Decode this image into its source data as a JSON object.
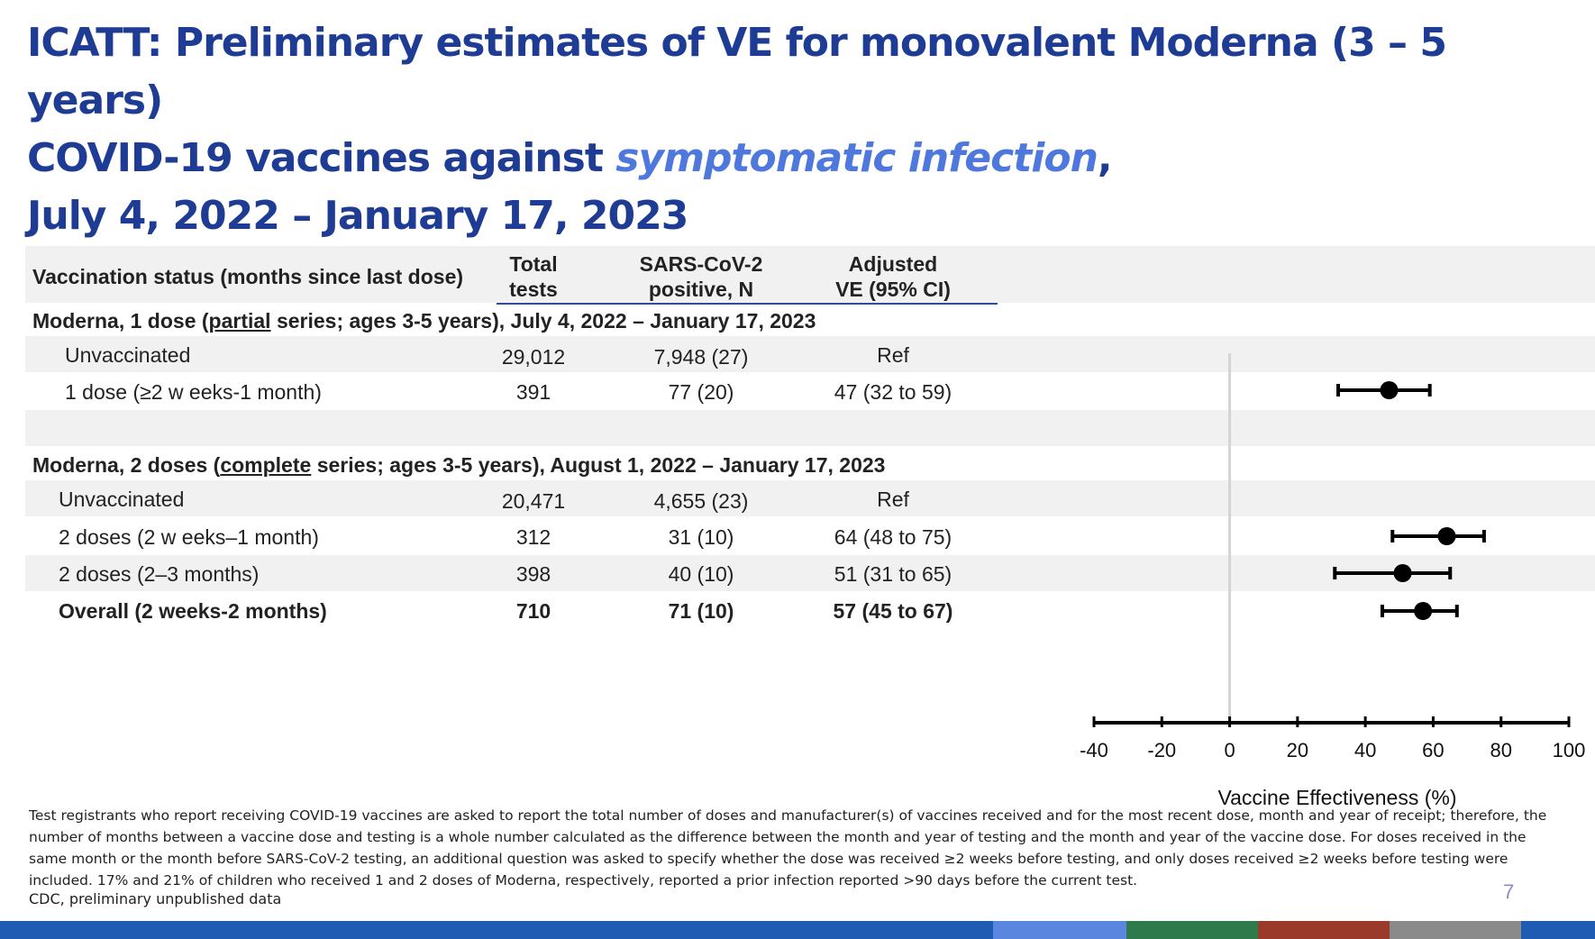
{
  "title": {
    "line1": "ICATT: Preliminary estimates of VE for monovalent Moderna (3 – 5 years)",
    "line2_prefix": "COVID-19 vaccines against ",
    "line2_emphasis": "symptomatic infection",
    "line2_suffix": ",",
    "line3": "July 4, 2022 – January  17, 2023"
  },
  "table": {
    "headers": {
      "status": "Vaccination status (months since last dose)",
      "total_line1": "Total",
      "total_line2": "tests",
      "positive_line1": "SARS-CoV-2",
      "positive_line2": "positive, N",
      "ve_line1": "Adjusted",
      "ve_line2": "VE (95% CI)"
    },
    "group1": {
      "prefix": "Moderna, 1 dose (",
      "underlined": "partial",
      "suffix": " series; ages 3-5 years), July 4, 2022 – January 17, 2023",
      "rows": [
        {
          "status": "Unvaccinated",
          "total": "29,012",
          "positive": "7,948 (27)",
          "ve": "Ref"
        },
        {
          "status": "1 dose (≥2 w eeks-1 month)",
          "total": "391",
          "positive": "77 (20)",
          "ve": "47 (32 to 59)"
        }
      ]
    },
    "group2": {
      "prefix": "Moderna, 2 doses (",
      "underlined": "complete",
      "suffix": " series; ages 3-5 years), August 1, 2022 – January 17, 2023",
      "rows": [
        {
          "status": "Unvaccinated",
          "total": "20,471",
          "positive": "4,655 (23)",
          "ve": "Ref"
        },
        {
          "status": "2 doses (2 w eeks–1 month)",
          "total": "312",
          "positive": "31 (10)",
          "ve": "64 (48 to 75)"
        },
        {
          "status": "2 doses (2–3 months)",
          "total": "398",
          "positive": "40 (10)",
          "ve": "51 (31 to 65)"
        },
        {
          "status": "Overall (2 weeks-2 months)",
          "total": "710",
          "positive": "71 (10)",
          "ve": "57 (45 to 67)"
        }
      ]
    }
  },
  "chart_data": {
    "type": "scatter",
    "subtype": "forest-plot",
    "xlabel": "Vaccine Effectiveness (%)",
    "xlim": [
      -40,
      100
    ],
    "xticks": [
      -40,
      -20,
      0,
      20,
      40,
      60,
      80,
      100
    ],
    "reference_line": 0,
    "points": [
      {
        "row": "1 dose (≥2 w eeks-1 month)",
        "estimate": 47,
        "lower": 32,
        "upper": 59
      },
      {
        "row": "2 doses (2 w eeks–1 month)",
        "estimate": 64,
        "lower": 48,
        "upper": 75
      },
      {
        "row": "2 doses (2–3 months)",
        "estimate": 51,
        "lower": 31,
        "upper": 65
      },
      {
        "row": "Overall (2 weeks-2 months)",
        "estimate": 57,
        "lower": 45,
        "upper": 67
      }
    ]
  },
  "footnote": "Test registrants who report receiving COVID-19 vaccines are asked to report the total number of doses and manufacturer(s) of vaccines received and for the most recent dose, month and year of receipt; therefore, the number of months between a vaccine dose and testing is a whole number calculated as the difference between the month and year of testing and the month and year of the vaccine dose. For doses received in the same month or the month before SARS-CoV-2 testing, an additional question was asked to specify whether the dose was received ≥2 weeks before testing, and only doses received ≥2 weeks before testing were included. 17% and 21% of children who received 1 and 2 doses of Moderna, respectively, reported a prior infection reported >90 days before the current test.",
  "source": "CDC, preliminary unpublished data",
  "page_number": "7",
  "colors": {
    "title": "#1f3c95",
    "title_emphasis": "#4f78dc",
    "bottom_bar": [
      "#1f5bb3",
      "#5b86e0",
      "#2f7a4a",
      "#9a3a2a",
      "#8a8a8a",
      "#1f5bb3"
    ]
  }
}
